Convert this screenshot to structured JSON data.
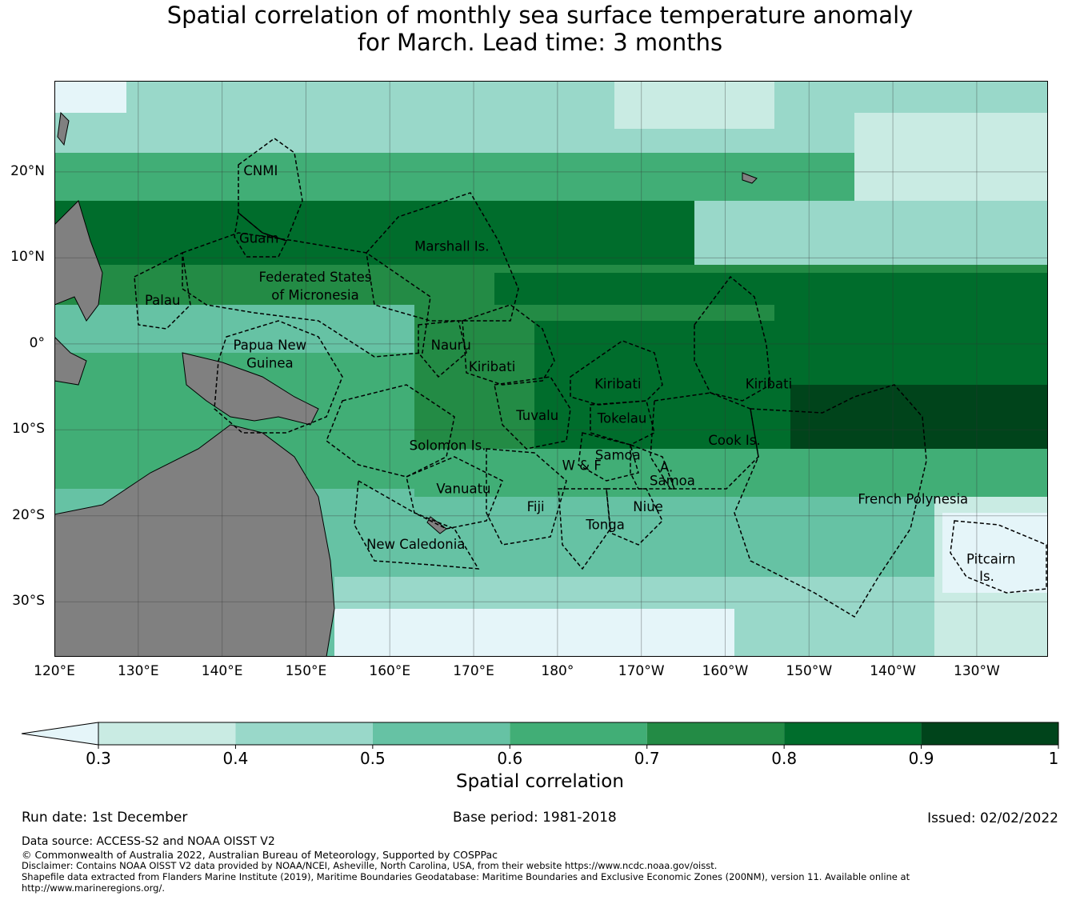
{
  "title_line1": "Spatial correlation of monthly sea surface temperature anomaly",
  "title_line2": "for March. Lead time: 3 months",
  "lat_labels": [
    "20°N",
    "10°N",
    "0°",
    "10°S",
    "20°S",
    "30°S"
  ],
  "lat_values": [
    20,
    10,
    0,
    -10,
    -20,
    -30
  ],
  "lon_labels": [
    "120°E",
    "130°E",
    "140°E",
    "150°E",
    "160°E",
    "170°E",
    "180°",
    "170°W",
    "160°W",
    "150°W",
    "140°W",
    "130°W"
  ],
  "lon_values": [
    120,
    130,
    140,
    150,
    160,
    170,
    180,
    190,
    200,
    210,
    220,
    230
  ],
  "map_extent": {
    "lon_min": 120,
    "lon_max": 238.5,
    "lat_min": -36.4,
    "lat_max": 30.6
  },
  "regions": [
    {
      "name": "CNMI",
      "lon": 144.6,
      "lat": 20.2
    },
    {
      "name": "Guam",
      "lon": 144.4,
      "lat": 12.3
    },
    {
      "name": "Marshall Is.",
      "lon": 167.4,
      "lat": 11.4
    },
    {
      "name": "Federated States",
      "lon": 151.1,
      "lat": 7.8
    },
    {
      "name": "of Micronesia",
      "lon": 151.1,
      "lat": 5.7
    },
    {
      "name": "Palau",
      "lon": 132.9,
      "lat": 5.1
    },
    {
      "name": "Papua New",
      "lon": 145.7,
      "lat": -0.1
    },
    {
      "name": "Guinea",
      "lon": 145.7,
      "lat": -2.2
    },
    {
      "name": "Nauru",
      "lon": 167.3,
      "lat": -0.1
    },
    {
      "name": "Kiribati",
      "lon": 172.2,
      "lat": -2.6
    },
    {
      "name": "Kiribati",
      "lon": 187.2,
      "lat": -4.6
    },
    {
      "name": "Kiribati",
      "lon": 205.2,
      "lat": -4.6
    },
    {
      "name": "Tuvalu",
      "lon": 177.6,
      "lat": -8.3
    },
    {
      "name": "Tokelau",
      "lon": 187.7,
      "lat": -8.6
    },
    {
      "name": "Solomon Is.",
      "lon": 166.9,
      "lat": -11.8
    },
    {
      "name": "Cook Is.",
      "lon": 201.1,
      "lat": -11.2
    },
    {
      "name": "Samoa",
      "lon": 187.2,
      "lat": -12.9
    },
    {
      "name": "W & F",
      "lon": 182.9,
      "lat": -14.1
    },
    {
      "name": "A.",
      "lon": 193.0,
      "lat": -14.3
    },
    {
      "name": "Samoa",
      "lon": 193.7,
      "lat": -15.9
    },
    {
      "name": "Vanuatu",
      "lon": 168.8,
      "lat": -16.8
    },
    {
      "name": "Fiji",
      "lon": 177.4,
      "lat": -18.9
    },
    {
      "name": "Niue",
      "lon": 190.8,
      "lat": -18.9
    },
    {
      "name": "Tonga",
      "lon": 185.7,
      "lat": -21.0
    },
    {
      "name": "French Polynesia",
      "lon": 222.4,
      "lat": -18.0
    },
    {
      "name": "New Caledonia",
      "lon": 163.1,
      "lat": -23.3
    },
    {
      "name": "Pitcairn",
      "lon": 231.7,
      "lat": -25.0
    },
    {
      "name": "Is.",
      "lon": 231.2,
      "lat": -27.0
    }
  ],
  "colorbar": {
    "label": "Spatial correlation",
    "tick_labels": [
      "0.3",
      "0.4",
      "0.5",
      "0.6",
      "0.7",
      "0.8",
      "0.9",
      "1"
    ],
    "colors": [
      "#c9ebe3",
      "#99d8c9",
      "#66c2a4",
      "#41ae76",
      "#238b45",
      "#006d2c",
      "#00441b"
    ],
    "extend_color": "#e5f5f9"
  },
  "run_date": "Run date: 1st December",
  "base_period": "Base period: 1981-2018",
  "issued": "Issued: 02/02/2022",
  "footer": {
    "data_source": "Data source: ACCESS-S2 and NOAA OISST V2",
    "copyright": "© Commonwealth of Australia 2022, Australian Bureau of Meteorology, Supported by COSPPac",
    "disclaimer": "Disclaimer: Contains NOAA OISST V2 data provided by NOAA/NCEI, Asheville, North Carolina, USA, from their website https://www.ncdc.noaa.gov/oisst.",
    "shapefile_1": "Shapefile data extracted from Flanders Marine Institute (2019), Maritime Boundaries Geodatabase: Maritime Boundaries and Exclusive Economic Zones (200NM), version 11. Available online at",
    "shapefile_2": "http://www.marineregions.org/."
  }
}
